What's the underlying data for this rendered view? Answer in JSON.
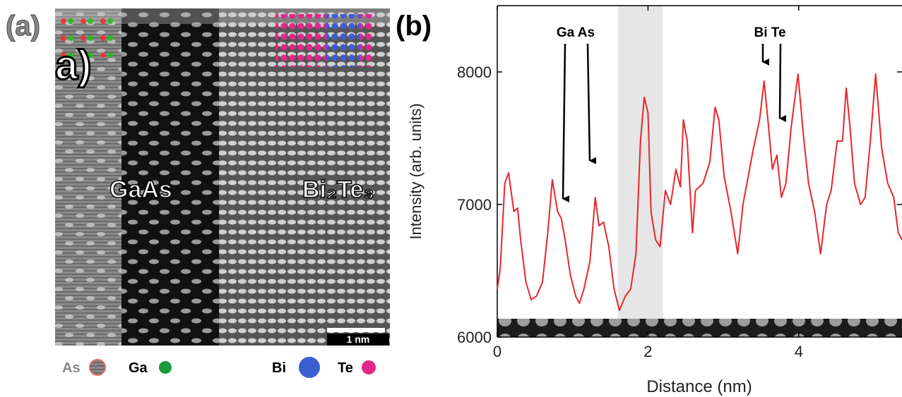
{
  "panel_a": {
    "label": "(a)",
    "overlay": "a)",
    "regions": [
      "GaAs",
      "Bi₂Te₃"
    ],
    "scale_bar": "1 nm",
    "legend": [
      "As",
      "Ga",
      "Bi",
      "Te"
    ]
  },
  "chart_data": {
    "type": "line",
    "label": "(b)",
    "xlabel": "Distance (nm)",
    "ylabel": "Intensity (arb. units)",
    "color": "#e8262b",
    "x": [
      0,
      0.04,
      0.1,
      0.15,
      0.22,
      0.27,
      0.31,
      0.38,
      0.45,
      0.52,
      0.6,
      0.67,
      0.73,
      0.8,
      0.85,
      0.9,
      0.97,
      1.04,
      1.09,
      1.15,
      1.23,
      1.3,
      1.35,
      1.41,
      1.48,
      1.55,
      1.62,
      1.7,
      1.77,
      1.84,
      1.9,
      1.95,
      2.0,
      2.04,
      2.1,
      2.16,
      2.23,
      2.3,
      2.37,
      2.43,
      2.47,
      2.52,
      2.59,
      2.63,
      2.73,
      2.82,
      2.89,
      2.94,
      3.01,
      3.1,
      3.19,
      3.26,
      3.33,
      3.4,
      3.48,
      3.54,
      3.6,
      3.65,
      3.71,
      3.77,
      3.83,
      3.9,
      3.99,
      4.06,
      4.13,
      4.21,
      4.29,
      4.37,
      4.43,
      4.51,
      4.58,
      4.63,
      4.68,
      4.74,
      4.82,
      4.88,
      4.95,
      5.02,
      5.1,
      5.18,
      5.26,
      5.32,
      5.37
    ],
    "values": [
      6362,
      6521,
      7160,
      7239,
      6947,
      6973,
      6734,
      6415,
      6282,
      6309,
      6415,
      6787,
      7186,
      6947,
      6894,
      6734,
      6468,
      6309,
      6255,
      6362,
      6574,
      7053,
      6840,
      6867,
      6681,
      6362,
      6202,
      6309,
      6362,
      6628,
      7479,
      7809,
      7691,
      6947,
      6734,
      6681,
      7106,
      7000,
      7266,
      7133,
      7638,
      7479,
      6787,
      7106,
      7160,
      7319,
      7734,
      7638,
      7213,
      6947,
      6628,
      7000,
      7213,
      7426,
      7638,
      7931,
      7585,
      7266,
      7372,
      7053,
      7160,
      7585,
      7984,
      7532,
      7160,
      6947,
      6628,
      7000,
      7106,
      7479,
      7479,
      7878,
      7585,
      7160,
      7000,
      7053,
      7479,
      7984,
      7426,
      7160,
      7053,
      6787,
      6734
    ],
    "xlim": [
      0,
      5.37
    ],
    "ylim": [
      6000,
      8500
    ],
    "xticks": [
      0,
      2,
      4
    ],
    "yticks": [
      6000,
      7000,
      8000
    ],
    "shaded_region": [
      1.6,
      2.2
    ],
    "annotations": [
      "Ga As",
      "Bi Te"
    ]
  }
}
